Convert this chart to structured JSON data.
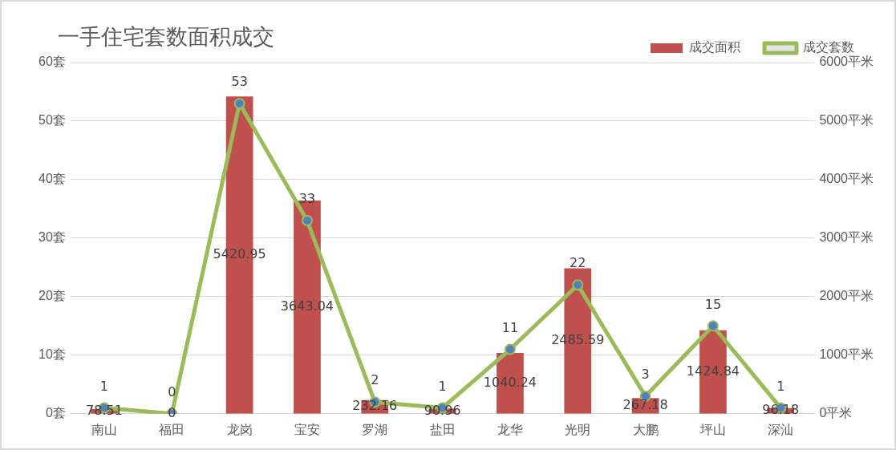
{
  "chart_data": {
    "type": "bar",
    "title": "一手住宅套数面积成交",
    "categories": [
      "南山",
      "福田",
      "龙岗",
      "宝安",
      "罗湖",
      "盐田",
      "龙华",
      "光明",
      "大鹏",
      "坪山",
      "深汕"
    ],
    "series": [
      {
        "name": "成交面积",
        "axis": "y2",
        "color": "#c0504d",
        "values": [
          78.51,
          0,
          5420.95,
          3643.04,
          232.16,
          90.96,
          1040.24,
          2485.59,
          267.18,
          1424.84,
          96.18
        ]
      },
      {
        "name": "成交套数",
        "type": "line",
        "axis": "y",
        "color": "#9bbb59",
        "values": [
          1,
          0,
          53,
          33,
          2,
          1,
          11,
          22,
          3,
          15,
          1
        ]
      }
    ],
    "ylim": [
      0,
      60
    ],
    "yticks": [
      {
        "value": 0,
        "label": "0套"
      },
      {
        "value": 10,
        "label": "10套"
      },
      {
        "value": 20,
        "label": "20套"
      },
      {
        "value": 30,
        "label": "30套"
      },
      {
        "value": 40,
        "label": "40套"
      },
      {
        "value": 50,
        "label": "50套"
      },
      {
        "value": 60,
        "label": "60套"
      }
    ],
    "y2lim": [
      0,
      6000
    ],
    "y2ticks": [
      {
        "value": 0,
        "label": "0平米"
      },
      {
        "value": 1000,
        "label": "1000平米"
      },
      {
        "value": 2000,
        "label": "2000平米"
      },
      {
        "value": 3000,
        "label": "3000平米"
      },
      {
        "value": 4000,
        "label": "4000平米"
      },
      {
        "value": 5000,
        "label": "5000平米"
      },
      {
        "value": 6000,
        "label": "6000平米"
      }
    ],
    "grid": "y",
    "legend": "top right",
    "marker": "circle",
    "data_labels": true
  }
}
